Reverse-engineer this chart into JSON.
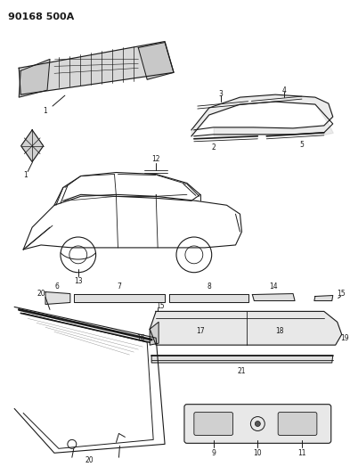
{
  "title": "90168 500A",
  "bg_color": "#ffffff",
  "lc": "#1a1a1a",
  "fig_width": 3.93,
  "fig_height": 5.33,
  "dpi": 100,
  "label_fs": 5.5,
  "title_fs": 8
}
